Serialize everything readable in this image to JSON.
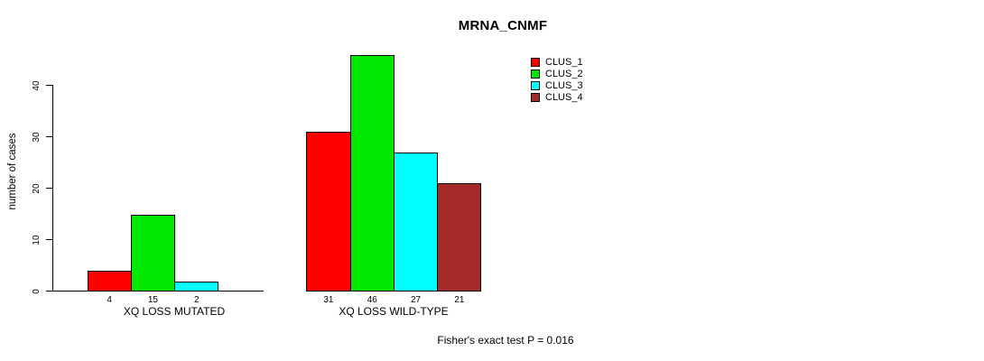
{
  "chart_data": {
    "type": "bar",
    "title": "MRNA_CNMF",
    "xlabel": "",
    "ylabel": "number of cases",
    "yticks": [
      0,
      10,
      20,
      30,
      40
    ],
    "ylim": [
      0,
      47
    ],
    "grid": false,
    "legend_position": "top-right",
    "bar_value_labels": "values printed under each bar; zero values draw no bar and no label",
    "categories": [
      "XQ LOSS MUTATED",
      "XQ LOSS WILD-TYPE"
    ],
    "series": [
      {
        "name": "CLUS_1",
        "color": "#ff0000",
        "values": [
          4,
          31
        ]
      },
      {
        "name": "CLUS_2",
        "color": "#00e800",
        "values": [
          15,
          46
        ]
      },
      {
        "name": "CLUS_3",
        "color": "#00ffff",
        "values": [
          2,
          27
        ]
      },
      {
        "name": "CLUS_4",
        "color": "#a52a2a",
        "values": [
          0,
          21
        ]
      }
    ]
  },
  "annotation": {
    "text": "Fisher's exact test P = 0.016"
  },
  "colors": {
    "axis": "#000000",
    "text": "#000000",
    "background": "#ffffff"
  }
}
